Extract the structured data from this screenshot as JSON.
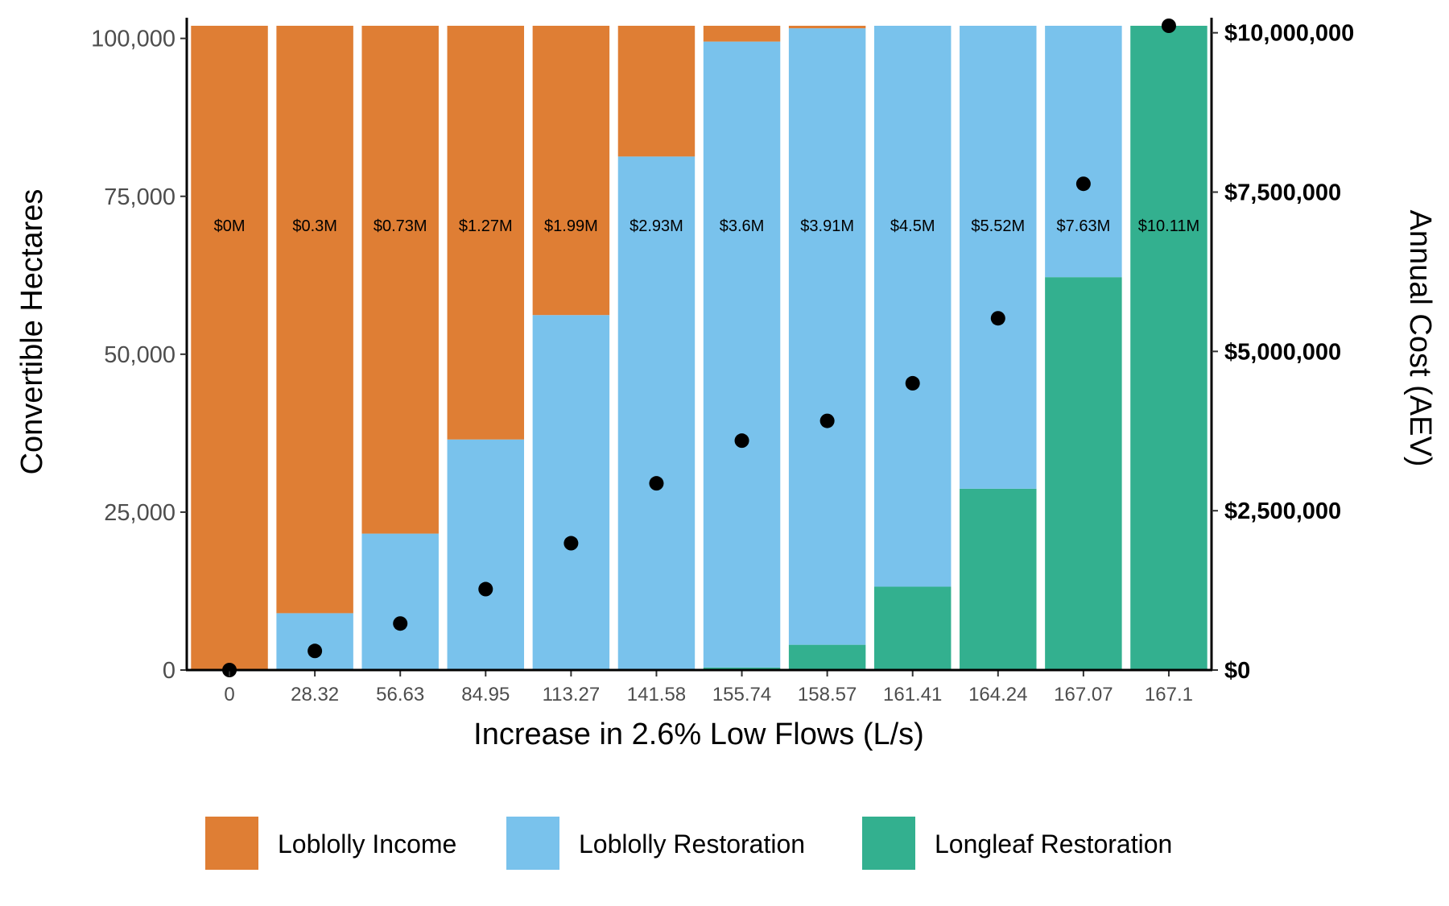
{
  "chart_data": {
    "type": "bar",
    "stacked": true,
    "title": "",
    "xlabel": "Increase in 2.6% Low Flows (L/s)",
    "ylabel": "Convertible Hectares",
    "y2label": "Annual Cost (AEV)",
    "categories": [
      "0",
      "28.32",
      "56.63",
      "84.95",
      "113.27",
      "141.58",
      "155.74",
      "158.57",
      "161.41",
      "164.24",
      "167.07",
      "167.1"
    ],
    "series": [
      {
        "name": "Longleaf Restoration",
        "color": "#33b08f",
        "values": [
          0,
          0,
          0,
          0,
          0,
          0,
          400,
          4000,
          13200,
          28700,
          62200,
          102000
        ]
      },
      {
        "name": "Loblolly Restoration",
        "color": "#79c2ec",
        "values": [
          0,
          9000,
          21600,
          36500,
          56200,
          81300,
          99100,
          97600,
          88800,
          73300,
          39800,
          0
        ]
      },
      {
        "name": "Loblolly Income",
        "color": "#df7e34",
        "values": [
          102000,
          93000,
          80400,
          65500,
          45800,
          20700,
          2500,
          400,
          0,
          0,
          0,
          0
        ]
      }
    ],
    "cost_labels": [
      "$0M",
      "$0.3M",
      "$0.73M",
      "$1.27M",
      "$1.99M",
      "$2.93M",
      "$3.6M",
      "$3.91M",
      "$4.5M",
      "$5.52M",
      "$7.63M",
      "$10.11M"
    ],
    "annual_cost": [
      0,
      300000,
      730000,
      1270000,
      1990000,
      2930000,
      3600000,
      3910000,
      4500000,
      5520000,
      7630000,
      10110000
    ],
    "ylim": [
      0,
      102000
    ],
    "y2lim": [
      0,
      10110000
    ],
    "yticks": [
      0,
      25000,
      50000,
      75000,
      100000
    ],
    "ytick_labels": [
      "0",
      "25,000",
      "50,000",
      "75,000",
      "100,000"
    ],
    "y2ticks": [
      0,
      2500000,
      5000000,
      7500000,
      10000000
    ],
    "y2tick_labels": [
      "$0",
      "$2,500,000",
      "$5,000,000",
      "$7,500,000",
      "$10,000,000"
    ],
    "legend": {
      "position": "bottom",
      "order": [
        "Loblolly Income",
        "Loblolly Restoration",
        "Longleaf Restoration"
      ]
    },
    "grid": false
  }
}
